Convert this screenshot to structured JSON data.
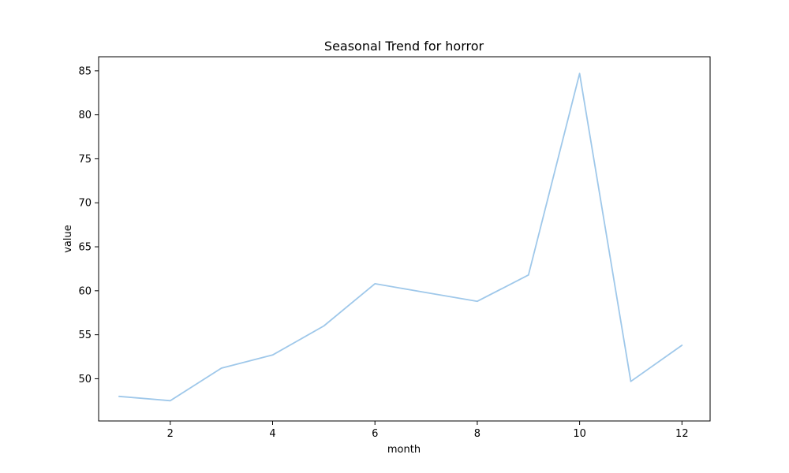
{
  "chart_data": {
    "type": "line",
    "title": "Seasonal Trend for horror",
    "xlabel": "month",
    "ylabel": "value",
    "xlim": [
      0.6,
      12.55
    ],
    "ylim": [
      45.2,
      86.6
    ],
    "x_ticks": [
      2,
      4,
      6,
      8,
      10,
      12
    ],
    "y_ticks": [
      50,
      55,
      60,
      65,
      70,
      75,
      80,
      85
    ],
    "grid": false,
    "series": [
      {
        "color": "#9fc8ea",
        "x": [
          1,
          2,
          3,
          4,
          5,
          6,
          7,
          8,
          9,
          10,
          11,
          12
        ],
        "values": [
          48.0,
          47.5,
          51.2,
          52.7,
          56.0,
          60.8,
          59.8,
          58.8,
          61.8,
          84.7,
          49.7,
          53.8
        ]
      }
    ]
  }
}
